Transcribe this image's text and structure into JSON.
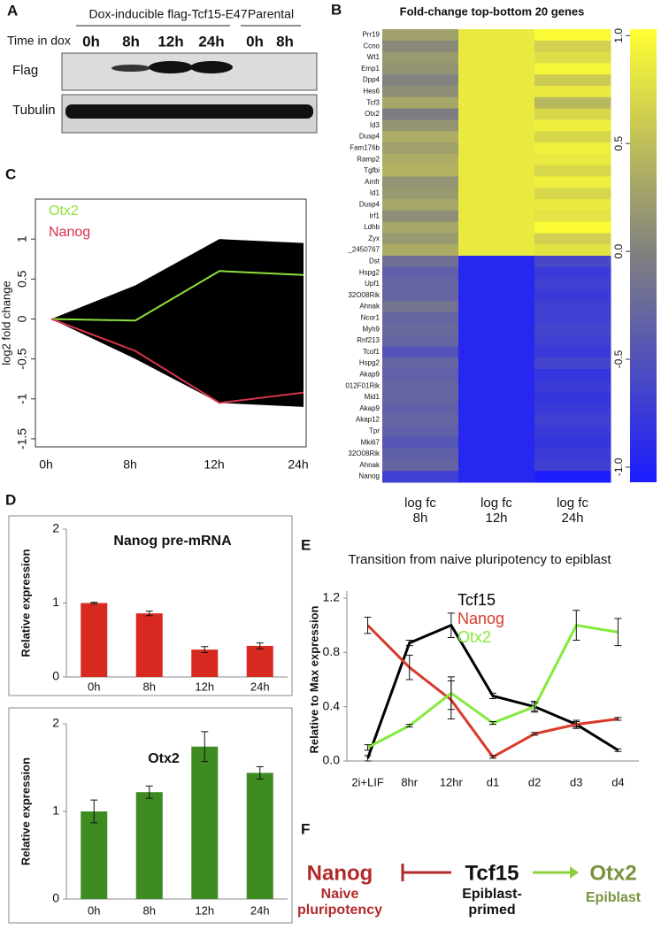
{
  "panel_a": {
    "label": "A",
    "group_1": "Dox-inducible flag-Tcf15-E47",
    "group_2": "Parental",
    "time_label": "Time in dox",
    "lanes": [
      "0h",
      "8h",
      "12h",
      "24h",
      "0h",
      "8h"
    ],
    "rows": [
      "Flag",
      "Tubulin"
    ]
  },
  "chart_data": [
    {
      "type": "heatmap",
      "label": "B",
      "title": "Fold-change top-bottom 20 genes",
      "rows": [
        "Prr19",
        "Ccno",
        "Wt1",
        "Emp1",
        "Dpp4",
        "Hes6",
        "Tcf3",
        "Otx2",
        "Id3",
        "Dusp4",
        "Fam176b",
        "Ramp2",
        "Tgfbi",
        "Amfr",
        "Id1",
        "Dusp4",
        "Irf1",
        "Ldhb",
        "Zyx",
        "_2450767",
        "Dst",
        "Hspg2",
        "Upf1",
        "32O08Rik",
        "Ahnak",
        "Ncor1",
        "Myh9",
        "Rnf213",
        "Tcof1",
        "Hspg2",
        "Akap9",
        "012F01Rik",
        "Mid1",
        "Akap9",
        "Akap12",
        "Tpr",
        "Mki67",
        "32O08Rik",
        "Ahnak",
        "Nanog"
      ],
      "columns": [
        "log fc 8h",
        "log fc 12h",
        "log fc 24h"
      ],
      "values": [
        [
          0.25,
          0.85,
          1.0
        ],
        [
          0.05,
          0.85,
          0.65
        ],
        [
          0.2,
          0.85,
          0.75
        ],
        [
          0.15,
          0.85,
          0.95
        ],
        [
          0.0,
          0.85,
          0.6
        ],
        [
          0.1,
          0.85,
          0.85
        ],
        [
          0.3,
          0.85,
          0.45
        ],
        [
          -0.05,
          0.85,
          0.7
        ],
        [
          0.15,
          0.85,
          0.9
        ],
        [
          0.35,
          0.85,
          0.7
        ],
        [
          0.25,
          0.85,
          0.9
        ],
        [
          0.35,
          0.85,
          0.85
        ],
        [
          0.4,
          0.85,
          0.7
        ],
        [
          0.15,
          0.85,
          0.9
        ],
        [
          0.2,
          0.85,
          0.7
        ],
        [
          0.3,
          0.85,
          0.85
        ],
        [
          0.1,
          0.85,
          0.8
        ],
        [
          0.3,
          0.85,
          1.0
        ],
        [
          0.2,
          0.85,
          0.65
        ],
        [
          0.35,
          0.85,
          0.8
        ],
        [
          -0.2,
          -0.95,
          -0.6
        ],
        [
          -0.35,
          -0.95,
          -0.75
        ],
        [
          -0.3,
          -0.95,
          -0.7
        ],
        [
          -0.3,
          -0.95,
          -0.75
        ],
        [
          -0.15,
          -0.95,
          -0.7
        ],
        [
          -0.3,
          -0.95,
          -0.7
        ],
        [
          -0.25,
          -0.95,
          -0.65
        ],
        [
          -0.3,
          -0.95,
          -0.7
        ],
        [
          -0.5,
          -0.95,
          -0.75
        ],
        [
          -0.3,
          -0.95,
          -0.65
        ],
        [
          -0.35,
          -0.95,
          -0.8
        ],
        [
          -0.3,
          -0.95,
          -0.75
        ],
        [
          -0.3,
          -0.95,
          -0.8
        ],
        [
          -0.35,
          -0.95,
          -0.75
        ],
        [
          -0.3,
          -0.95,
          -0.7
        ],
        [
          -0.35,
          -0.95,
          -0.75
        ],
        [
          -0.45,
          -0.95,
          -0.8
        ],
        [
          -0.35,
          -0.95,
          -0.75
        ],
        [
          -0.3,
          -0.95,
          -0.7
        ],
        [
          -0.7,
          -0.95,
          -1.05
        ]
      ],
      "clim": [
        -1.07,
        1.03
      ],
      "colormap": [
        "#1c1cff",
        "#7f7f80",
        "#ffff33"
      ],
      "cticks": [
        {
          "value": -1,
          "label": "-1.0"
        },
        -0.5,
        {
          "value": 0,
          "label": "0.0"
        },
        0.5,
        {
          "value": 1,
          "label": "1.0"
        }
      ]
    },
    {
      "type": "line",
      "label": "C",
      "ylabel": "log2 fold change",
      "categories": [
        "0h",
        "8h",
        "12h",
        "24h"
      ],
      "ylim": [
        -1.6,
        1.5
      ],
      "yticks": [
        -1.5,
        -1,
        -0.5,
        0,
        0.5,
        1
      ],
      "band_upper": [
        0,
        0.42,
        1.0,
        0.95
      ],
      "band_lower": [
        0,
        -0.5,
        -1.05,
        -1.1
      ],
      "band_color": "#000000",
      "series": [
        {
          "name": "Otx2",
          "color": "#8ee03a",
          "values": [
            0,
            -0.02,
            0.6,
            0.55
          ]
        },
        {
          "name": "Nanog",
          "color": "#d8334a",
          "values": [
            0,
            -0.4,
            -1.05,
            -0.92
          ]
        }
      ]
    },
    {
      "type": "bar",
      "label": "D",
      "title": "Nanog pre-mRNA",
      "ylabel": "Relative expression",
      "categories": [
        "0h",
        "8h",
        "12h",
        "24h"
      ],
      "values": [
        1,
        0.86,
        0.37,
        0.42
      ],
      "errors": [
        0.01,
        0.03,
        0.04,
        0.04
      ],
      "color": "#d7291f",
      "ylim": [
        0,
        2
      ],
      "yticks": [
        0,
        1,
        2
      ]
    },
    {
      "type": "bar",
      "title": "Otx2",
      "ylabel": "Relative expression",
      "categories": [
        "0h",
        "8h",
        "12h",
        "24h"
      ],
      "values": [
        1,
        1.22,
        1.74,
        1.44
      ],
      "errors": [
        0.13,
        0.07,
        0.17,
        0.07
      ],
      "color": "#3e8b22",
      "ylim": [
        0,
        2
      ],
      "yticks": [
        0,
        1,
        2
      ]
    },
    {
      "type": "errorline",
      "label": "E",
      "title": "Transition from naive pluripotency to epiblast",
      "ylabel": "Relative to Max expression",
      "categories": [
        "2i+LIF",
        "8hr",
        "12hr",
        "d1",
        "d2",
        "d3",
        "d4"
      ],
      "ylim": [
        0,
        1.2
      ],
      "yticks": [
        {
          "value": 0,
          "label": "0.0"
        },
        0.4,
        0.8,
        1.2
      ],
      "series": [
        {
          "name": "Tcf15",
          "color": "#000000",
          "values": [
            0.02,
            0.87,
            1.0,
            0.48,
            0.4,
            0.27,
            0.08
          ],
          "errors": [
            0.02,
            0.02,
            0.09,
            0.02,
            0.04,
            0.03,
            0.01
          ]
        },
        {
          "name": "Nanog",
          "color": "#d9392b",
          "values": [
            1.0,
            0.69,
            0.45,
            0.03,
            0.2,
            0.27,
            0.31
          ],
          "errors": [
            0.06,
            0.09,
            0.14,
            0.01,
            0.01,
            0.02,
            0.01
          ]
        },
        {
          "name": "Otx2",
          "color": "#84ea3c",
          "values": [
            0.1,
            0.26,
            0.5,
            0.28,
            0.4,
            1.0,
            0.95
          ],
          "errors": [
            0.02,
            0.01,
            0.12,
            0.01,
            0.03,
            0.11,
            0.1
          ]
        }
      ]
    }
  ],
  "panel_f": {
    "label": "F",
    "nodes": [
      {
        "name": "Nanog",
        "caption": "Naive pluripotency"
      },
      {
        "name": "Tcf15",
        "caption": "Epiblast-primed"
      },
      {
        "name": "Otx2",
        "caption": "Epiblast"
      }
    ]
  }
}
